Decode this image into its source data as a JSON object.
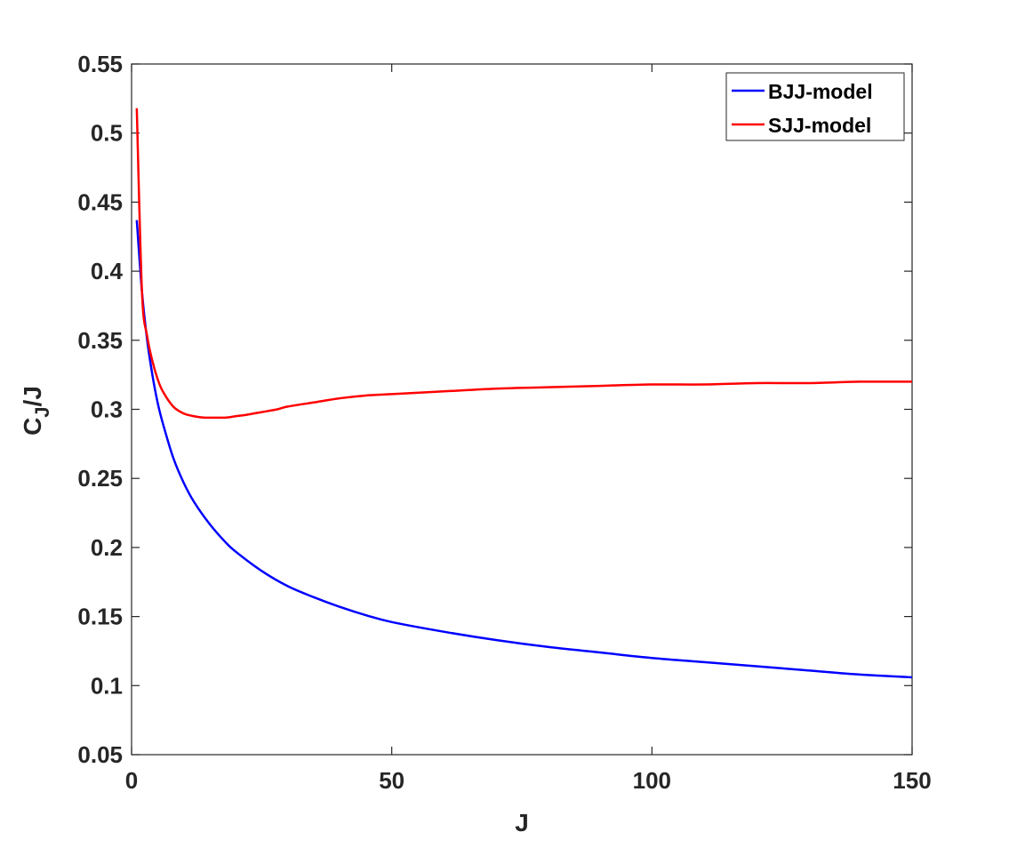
{
  "chart_data": {
    "type": "line",
    "title": "",
    "xlabel": "J",
    "ylabel_main": "C",
    "ylabel_sub": "J",
    "ylabel_tail": "/J",
    "xlim": [
      0,
      150
    ],
    "ylim": [
      0.05,
      0.55
    ],
    "xticks": [
      0,
      50,
      100,
      150
    ],
    "xtick_labels": [
      "0",
      "50",
      "100",
      "150"
    ],
    "yticks": [
      0.05,
      0.1,
      0.15,
      0.2,
      0.25,
      0.3,
      0.35,
      0.4,
      0.45,
      0.5,
      0.55
    ],
    "ytick_labels": [
      "0.05",
      "0.1",
      "0.15",
      "0.2",
      "0.25",
      "0.3",
      "0.35",
      "0.4",
      "0.45",
      "0.5",
      "0.55"
    ],
    "grid": false,
    "legend_position": "top-right",
    "series": [
      {
        "name": "BJJ-model",
        "color": "#0000ff",
        "x": [
          1,
          2,
          3,
          4,
          5,
          6,
          8,
          10,
          12,
          15,
          18,
          20,
          25,
          30,
          35,
          40,
          45,
          50,
          60,
          70,
          80,
          90,
          100,
          110,
          120,
          130,
          140,
          150
        ],
        "y": [
          0.437,
          0.385,
          0.35,
          0.325,
          0.305,
          0.29,
          0.265,
          0.247,
          0.233,
          0.217,
          0.204,
          0.197,
          0.183,
          0.172,
          0.164,
          0.157,
          0.151,
          0.146,
          0.139,
          0.133,
          0.128,
          0.124,
          0.12,
          0.117,
          0.114,
          0.111,
          0.108,
          0.106
        ]
      },
      {
        "name": "SJJ-model",
        "color": "#ff0000",
        "x": [
          1,
          2,
          3,
          4,
          5,
          6,
          8,
          10,
          12,
          14,
          16,
          18,
          20,
          22,
          25,
          28,
          30,
          35,
          40,
          45,
          50,
          60,
          70,
          80,
          90,
          100,
          110,
          120,
          130,
          140,
          150
        ],
        "y": [
          0.518,
          0.385,
          0.353,
          0.335,
          0.322,
          0.313,
          0.302,
          0.297,
          0.295,
          0.294,
          0.294,
          0.294,
          0.295,
          0.296,
          0.298,
          0.3,
          0.302,
          0.305,
          0.308,
          0.31,
          0.311,
          0.313,
          0.315,
          0.316,
          0.317,
          0.318,
          0.318,
          0.319,
          0.319,
          0.32,
          0.32
        ]
      }
    ]
  }
}
